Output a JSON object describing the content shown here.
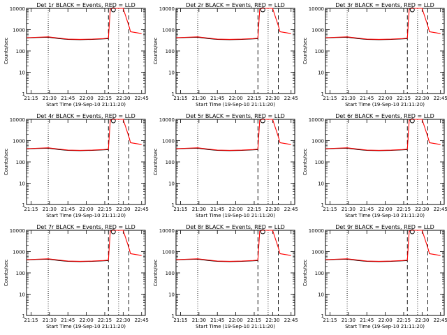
{
  "chart_data": [
    {
      "type": "line",
      "title": "Det 1r BLACK = Events, RED = LLD",
      "xlabel": "Start Time (19-Sep-10 21:11:20)",
      "ylabel": "Counts/sec"
    },
    {
      "type": "line",
      "title": "Det 2r BLACK = Events, RED = LLD",
      "xlabel": "Start Time (19-Sep-10 21:11:20)",
      "ylabel": "Counts/sec"
    },
    {
      "type": "line",
      "title": "Det 3r BLACK = Events, RED = LLD",
      "xlabel": "Start Time (19-Sep-10 21:11:20)",
      "ylabel": "Counts/sec"
    },
    {
      "type": "line",
      "title": "Det 4r BLACK = Events, RED = LLD",
      "xlabel": "Start Time (19-Sep-10 21:11:20)",
      "ylabel": "Counts/sec"
    },
    {
      "type": "line",
      "title": "Det 5r BLACK = Events, RED = LLD",
      "xlabel": "Start Time (19-Sep-10 21:11:20)",
      "ylabel": "Counts/sec"
    },
    {
      "type": "line",
      "title": "Det 6r BLACK = Events, RED = LLD",
      "xlabel": "Start Time (19-Sep-10 21:11:20)",
      "ylabel": "Counts/sec"
    },
    {
      "type": "line",
      "title": "Det 7r BLACK = Events, RED = LLD",
      "xlabel": "Start Time (19-Sep-10 21:11:20)",
      "ylabel": "Counts/sec"
    },
    {
      "type": "line",
      "title": "Det 8r BLACK = Events, RED = LLD",
      "xlabel": "Start Time (19-Sep-10 21:11:20)",
      "ylabel": "Counts/sec"
    },
    {
      "type": "line",
      "title": "Det 9r BLACK = Events, RED = LLD",
      "xlabel": "Start Time (19-Sep-10 21:11:20)",
      "ylabel": "Counts/sec"
    }
  ],
  "shared": {
    "yscale": "log",
    "ylim": [
      1,
      10000
    ],
    "ytick_labels": [
      "1",
      "10",
      "100",
      "1000",
      "10000"
    ],
    "xlim": [
      "21:11:20",
      "22:48:00"
    ],
    "xtick_labels": [
      "21:15",
      "21:30",
      "21:45",
      "22:00",
      "22:15",
      "22:30",
      "22:45"
    ],
    "vlines": [
      {
        "time": "21:29:00",
        "style": "dotted"
      },
      {
        "time": "22:18:00",
        "style": "dashed"
      },
      {
        "time": "22:26:20",
        "style": "dotted"
      },
      {
        "time": "22:34:40",
        "style": "dashed"
      }
    ],
    "markers": [
      {
        "time": "22:22:00",
        "value": 10000,
        "shape": "circle"
      }
    ],
    "colors": {
      "events": "#000000",
      "lld": "#ff0000"
    },
    "series": [
      {
        "name": "Events",
        "color": "#000000",
        "x": [
          "21:11:20",
          "21:20:00",
          "21:29:00",
          "21:38:00",
          "21:45:00",
          "21:55:00",
          "22:05:00",
          "22:14:00",
          "22:18:00"
        ],
        "y": [
          410,
          430,
          440,
          380,
          350,
          340,
          350,
          370,
          380
        ]
      },
      {
        "name": "LLD",
        "color": "#ff0000",
        "x": [
          "21:11:20",
          "21:20:00",
          "21:29:00",
          "21:38:00",
          "21:45:00",
          "21:55:00",
          "22:05:00",
          "22:14:00",
          "22:18:00",
          "22:19:30",
          "22:21:00",
          "22:27:00",
          "22:30:00",
          "22:34:40",
          "22:36:00",
          "22:42:00",
          "22:45:00"
        ],
        "y": [
          420,
          440,
          460,
          400,
          360,
          350,
          360,
          380,
          400,
          9000,
          10000,
          10000,
          10000,
          1500,
          800,
          700,
          650
        ]
      }
    ]
  }
}
